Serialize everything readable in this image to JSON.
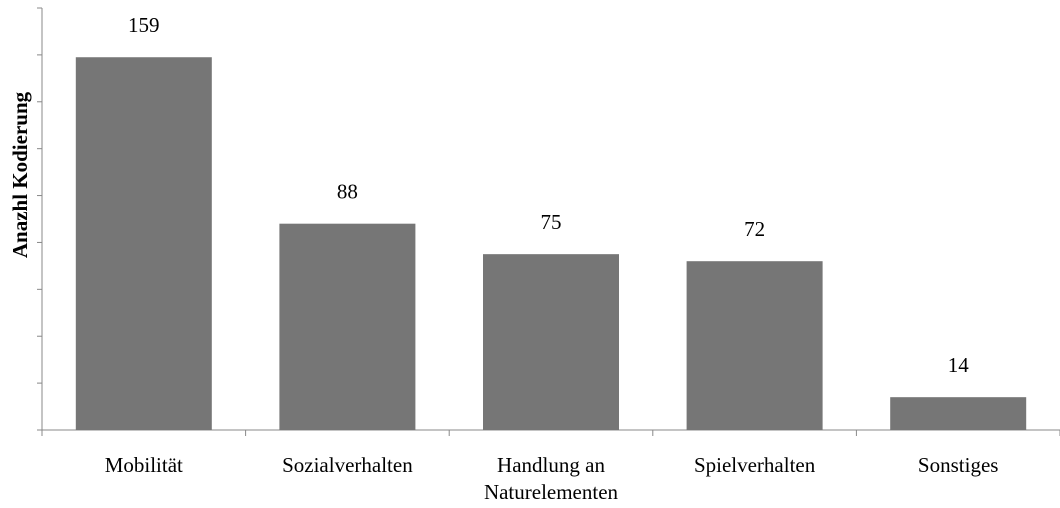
{
  "chart_data": {
    "type": "bar",
    "y_label": "Anazhl Kodierung",
    "categories": [
      "Mobilität",
      "Sozialverhalten",
      "Handlung an Naturelementen",
      "Spielverhalten",
      "Sonstiges"
    ],
    "values": [
      159,
      88,
      75,
      72,
      14
    ],
    "color": "#767676",
    "ylim": [
      0,
      180
    ],
    "yticks": [
      0,
      20,
      40,
      60,
      80,
      100,
      120,
      140,
      160,
      180
    ],
    "grid": false
  }
}
